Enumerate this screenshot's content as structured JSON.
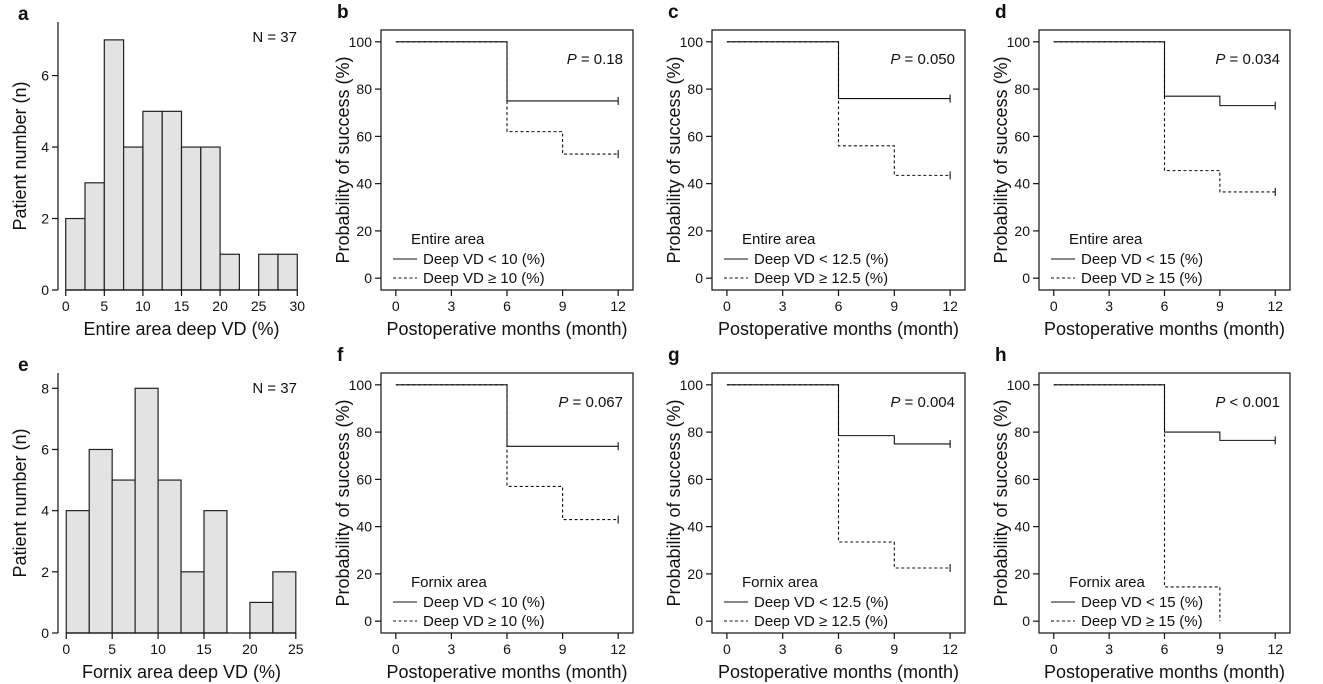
{
  "chart_data": [
    {
      "panel": "a",
      "type": "bar",
      "subtype": "histogram",
      "bins": [
        [
          0,
          2.5
        ],
        [
          2.5,
          5
        ],
        [
          5,
          7.5
        ],
        [
          7.5,
          10
        ],
        [
          10,
          12.5
        ],
        [
          12.5,
          15
        ],
        [
          15,
          17.5
        ],
        [
          17.5,
          20
        ],
        [
          20,
          22.5
        ],
        [
          22.5,
          25
        ],
        [
          25,
          27.5
        ],
        [
          27.5,
          30
        ]
      ],
      "values": [
        2,
        3,
        7,
        4,
        5,
        5,
        4,
        4,
        1,
        0,
        1,
        1
      ],
      "xlabel": "Entire area deep VD (%)",
      "ylabel": "Patient number (n)",
      "xticks": [
        "0",
        "5",
        "10",
        "15",
        "20",
        "25",
        "30"
      ],
      "yticks": [
        "0",
        "2",
        "4",
        "6"
      ],
      "xlim": [
        -1,
        31
      ],
      "ylim": [
        0,
        7.5
      ],
      "annotation": "N = 37"
    },
    {
      "panel": "b",
      "type": "line",
      "subtype": "kaplan-meier",
      "xlabel": "Postoperative months (month)",
      "ylabel": "Probability of success (%)",
      "xticks": [
        "0",
        "3",
        "6",
        "9",
        "12"
      ],
      "yticks": [
        "0",
        "20",
        "40",
        "60",
        "80",
        "100"
      ],
      "xlim": [
        -0.8,
        12.8
      ],
      "ylim": [
        -5,
        105
      ],
      "p_italic": "P",
      "p_value": "= 0.18",
      "legend_title": "Entire area",
      "series": [
        {
          "name": "Deep VD < 10 (%)",
          "style": "solid",
          "x": [
            0,
            6,
            12
          ],
          "y": [
            100,
            75,
            75
          ]
        },
        {
          "name": "Deep VD ≥ 10 (%)",
          "style": "dashed",
          "x": [
            0,
            6,
            9,
            12
          ],
          "y": [
            100,
            62,
            52.5,
            52.5
          ]
        }
      ]
    },
    {
      "panel": "c",
      "type": "line",
      "subtype": "kaplan-meier",
      "xlabel": "Postoperative months (month)",
      "ylabel": "Probability of success (%)",
      "xticks": [
        "0",
        "3",
        "6",
        "9",
        "12"
      ],
      "yticks": [
        "0",
        "20",
        "40",
        "60",
        "80",
        "100"
      ],
      "xlim": [
        -0.8,
        12.8
      ],
      "ylim": [
        -5,
        105
      ],
      "p_italic": "P",
      "p_value": "= 0.050",
      "legend_title": "Entire area",
      "series": [
        {
          "name": "Deep VD < 12.5 (%)",
          "style": "solid",
          "x": [
            0,
            6,
            12
          ],
          "y": [
            100,
            76,
            76
          ]
        },
        {
          "name": "Deep VD ≥ 12.5 (%)",
          "style": "dashed",
          "x": [
            0,
            6,
            9,
            12
          ],
          "y": [
            100,
            56,
            43.5,
            43.5
          ]
        }
      ]
    },
    {
      "panel": "d",
      "type": "line",
      "subtype": "kaplan-meier",
      "xlabel": "Postoperative months (month)",
      "ylabel": "Probability of success (%)",
      "xticks": [
        "0",
        "3",
        "6",
        "9",
        "12"
      ],
      "yticks": [
        "0",
        "20",
        "40",
        "60",
        "80",
        "100"
      ],
      "xlim": [
        -0.8,
        12.8
      ],
      "ylim": [
        -5,
        105
      ],
      "p_italic": "P",
      "p_value": "= 0.034",
      "legend_title": "Entire area",
      "series": [
        {
          "name": "Deep VD < 15 (%)",
          "style": "solid",
          "x": [
            0,
            6,
            9,
            12
          ],
          "y": [
            100,
            77,
            73,
            73
          ]
        },
        {
          "name": "Deep VD ≥ 15 (%)",
          "style": "dashed",
          "x": [
            0,
            6,
            9,
            12
          ],
          "y": [
            100,
            45.5,
            36.5,
            36.5
          ]
        }
      ]
    },
    {
      "panel": "e",
      "type": "bar",
      "subtype": "histogram",
      "bins": [
        [
          0,
          2.5
        ],
        [
          2.5,
          5
        ],
        [
          5,
          7.5
        ],
        [
          7.5,
          10
        ],
        [
          10,
          12.5
        ],
        [
          12.5,
          15
        ],
        [
          15,
          17.5
        ],
        [
          17.5,
          20
        ],
        [
          20,
          22.5
        ],
        [
          22.5,
          25
        ]
      ],
      "values": [
        4,
        6,
        5,
        8,
        5,
        2,
        4,
        0,
        1,
        2
      ],
      "xlabel": "Fornix area deep VD (%)",
      "ylabel": "Patient number (n)",
      "xticks": [
        "0",
        "5",
        "10",
        "15",
        "20",
        "25"
      ],
      "yticks": [
        "0",
        "2",
        "4",
        "6",
        "8"
      ],
      "xlim": [
        -0.9,
        26
      ],
      "ylim": [
        0,
        8.5
      ],
      "annotation": "N = 37"
    },
    {
      "panel": "f",
      "type": "line",
      "subtype": "kaplan-meier",
      "xlabel": "Postoperative months (month)",
      "ylabel": "Probability of success (%)",
      "xticks": [
        "0",
        "3",
        "6",
        "9",
        "12"
      ],
      "yticks": [
        "0",
        "20",
        "40",
        "60",
        "80",
        "100"
      ],
      "xlim": [
        -0.8,
        12.8
      ],
      "ylim": [
        -5,
        105
      ],
      "p_italic": "P",
      "p_value": "= 0.067",
      "legend_title": "Fornix area",
      "series": [
        {
          "name": "Deep VD < 10 (%)",
          "style": "solid",
          "x": [
            0,
            6,
            12
          ],
          "y": [
            100,
            74,
            74
          ]
        },
        {
          "name": "Deep VD ≥ 10 (%)",
          "style": "dashed",
          "x": [
            0,
            6,
            9,
            12
          ],
          "y": [
            100,
            57,
            43,
            43
          ]
        }
      ]
    },
    {
      "panel": "g",
      "type": "line",
      "subtype": "kaplan-meier",
      "xlabel": "Postoperative months (month)",
      "ylabel": "Probability of success (%)",
      "xticks": [
        "0",
        "3",
        "6",
        "9",
        "12"
      ],
      "yticks": [
        "0",
        "20",
        "40",
        "60",
        "80",
        "100"
      ],
      "xlim": [
        -0.8,
        12.8
      ],
      "ylim": [
        -5,
        105
      ],
      "p_italic": "P",
      "p_value": "= 0.004",
      "legend_title": "Fornix area",
      "series": [
        {
          "name": "Deep VD < 12.5 (%)",
          "style": "solid",
          "x": [
            0,
            6,
            9,
            12
          ],
          "y": [
            100,
            78.5,
            75,
            75
          ]
        },
        {
          "name": "Deep VD ≥ 12.5 (%)",
          "style": "dashed",
          "x": [
            0,
            6,
            9,
            12
          ],
          "y": [
            100,
            33.5,
            22.5,
            22.5
          ]
        }
      ]
    },
    {
      "panel": "h",
      "type": "line",
      "subtype": "kaplan-meier",
      "xlabel": "Postoperative months (month)",
      "ylabel": "Probability of success (%)",
      "xticks": [
        "0",
        "3",
        "6",
        "9",
        "12"
      ],
      "yticks": [
        "0",
        "20",
        "40",
        "60",
        "80",
        "100"
      ],
      "xlim": [
        -0.8,
        12.8
      ],
      "ylim": [
        -5,
        105
      ],
      "p_italic": "P",
      "p_value": "< 0.001",
      "legend_title": "Fornix area",
      "series": [
        {
          "name": "Deep VD < 15 (%)",
          "style": "solid",
          "x": [
            0,
            6,
            9,
            12
          ],
          "y": [
            100,
            80,
            76.5,
            76.5
          ]
        },
        {
          "name": "Deep VD ≥ 15 (%)",
          "style": "dashed",
          "x": [
            0,
            6,
            9,
            9
          ],
          "y": [
            100,
            14.5,
            14.5,
            0
          ]
        }
      ]
    }
  ]
}
